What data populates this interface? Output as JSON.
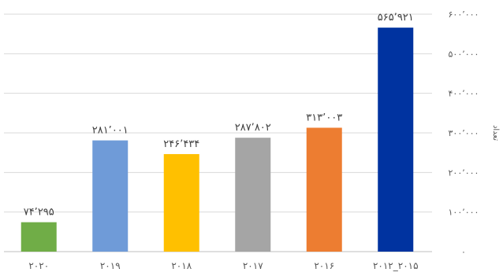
{
  "chart_data": {
    "type": "bar",
    "categories": [
      "۲۰۲۰",
      "۲۰۱۹",
      "۲۰۱۸",
      "۲۰۱۷",
      "۲۰۱۶",
      "۲۰۱۲_۲۰۱۵"
    ],
    "values": [
      74295,
      281001,
      246434,
      287802,
      313003,
      565921
    ],
    "data_labels": [
      "۷۴٬۲۹۵",
      "۲۸۱٬۰۰۱",
      "۲۴۶٬۴۳۴",
      "۲۸۷٬۸۰۲",
      "۳۱۳٬۰۰۳",
      "۵۶۵٬۹۲۱"
    ],
    "bar_colors": [
      "#70AD47",
      "#6F9BD8",
      "#FFC000",
      "#A5A5A5",
      "#ED7D31",
      "#0033A0"
    ],
    "y_ticks": [
      0,
      100000,
      200000,
      300000,
      400000,
      500000,
      600000
    ],
    "y_tick_labels": [
      "۰",
      "۱۰۰٬۰۰۰",
      "۲۰۰٬۰۰۰",
      "۳۰۰٬۰۰۰",
      "۴۰۰٬۰۰۰",
      "۵۰۰٬۰۰۰",
      "۶۰۰٬۰۰۰"
    ],
    "ylabel": "تعداد",
    "ylim": [
      0,
      600000
    ],
    "y_axis_side": "right",
    "grid": true,
    "grid_color": "#D9D9D9",
    "legend": false
  }
}
